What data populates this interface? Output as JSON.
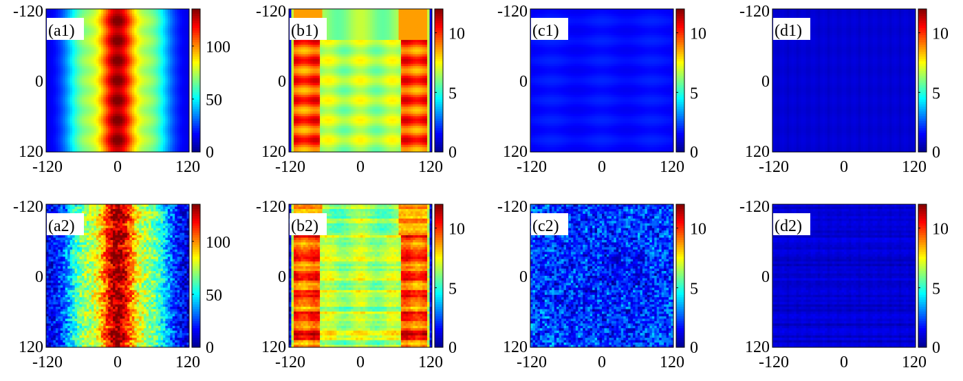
{
  "colormap": [
    "#00008f",
    "#0000ff",
    "#0080ff",
    "#00ffff",
    "#80ff80",
    "#ffff00",
    "#ff8000",
    "#ff0000",
    "#800000"
  ],
  "chart_data": [
    {
      "type": "heatmap",
      "panel_label": "(a1)",
      "pattern": "central_stripe_fringes",
      "noise": "none",
      "x_ticks": [
        "-120",
        "0",
        "120"
      ],
      "y_ticks": [
        "-120",
        "0",
        "120"
      ],
      "xlim": [
        -120,
        120
      ],
      "ylim": [
        -120,
        120
      ],
      "clim": [
        0,
        135
      ],
      "colorbar_ticks": [
        {
          "value": 0,
          "label": "0"
        },
        {
          "value": 50,
          "label": "50"
        },
        {
          "value": 100,
          "label": "100"
        }
      ]
    },
    {
      "type": "heatmap",
      "panel_label": "(b1)",
      "pattern": "edge_bands_fringes",
      "noise": "none",
      "x_ticks": [
        "-120",
        "0",
        "120"
      ],
      "y_ticks": [
        "-120",
        "0",
        "120"
      ],
      "xlim": [
        -120,
        120
      ],
      "ylim": [
        -120,
        120
      ],
      "clim": [
        0,
        12
      ],
      "colorbar_ticks": [
        {
          "value": 0,
          "label": "0"
        },
        {
          "value": 5,
          "label": "5"
        },
        {
          "value": 10,
          "label": "10"
        }
      ]
    },
    {
      "type": "heatmap",
      "panel_label": "(c1)",
      "pattern": "low_uniform_rows",
      "noise": "none",
      "x_ticks": [
        "-120",
        "0",
        "120"
      ],
      "y_ticks": [
        "-120",
        "0",
        "120"
      ],
      "xlim": [
        -120,
        120
      ],
      "ylim": [
        -120,
        120
      ],
      "clim": [
        0,
        12
      ],
      "colorbar_ticks": [
        {
          "value": 0,
          "label": "0"
        },
        {
          "value": 5,
          "label": "5"
        },
        {
          "value": 10,
          "label": "10"
        }
      ]
    },
    {
      "type": "heatmap",
      "panel_label": "(d1)",
      "pattern": "very_low_columns",
      "noise": "none",
      "x_ticks": [
        "-120",
        "0",
        "120"
      ],
      "y_ticks": [
        "-120",
        "0",
        "120"
      ],
      "xlim": [
        -120,
        120
      ],
      "ylim": [
        -120,
        120
      ],
      "clim": [
        0,
        12
      ],
      "colorbar_ticks": [
        {
          "value": 0,
          "label": "0"
        },
        {
          "value": 5,
          "label": "5"
        },
        {
          "value": 10,
          "label": "10"
        }
      ]
    },
    {
      "type": "heatmap",
      "panel_label": "(a2)",
      "pattern": "central_stripe_fringes",
      "noise": "speckle",
      "x_ticks": [
        "-120",
        "0",
        "120"
      ],
      "y_ticks": [
        "-120",
        "0",
        "120"
      ],
      "xlim": [
        -120,
        120
      ],
      "ylim": [
        -120,
        120
      ],
      "clim": [
        0,
        135
      ],
      "colorbar_ticks": [
        {
          "value": 0,
          "label": "0"
        },
        {
          "value": 50,
          "label": "50"
        },
        {
          "value": 100,
          "label": "100"
        }
      ]
    },
    {
      "type": "heatmap",
      "panel_label": "(b2)",
      "pattern": "edge_bands_fringes",
      "noise": "streaks",
      "x_ticks": [
        "-120",
        "0",
        "120"
      ],
      "y_ticks": [
        "-120",
        "0",
        "120"
      ],
      "xlim": [
        -120,
        120
      ],
      "ylim": [
        -120,
        120
      ],
      "clim": [
        0,
        12
      ],
      "colorbar_ticks": [
        {
          "value": 0,
          "label": "0"
        },
        {
          "value": 5,
          "label": "5"
        },
        {
          "value": 10,
          "label": "10"
        }
      ]
    },
    {
      "type": "heatmap",
      "panel_label": "(c2)",
      "pattern": "low_speckle",
      "noise": "blobs",
      "x_ticks": [
        "-120",
        "0",
        "120"
      ],
      "y_ticks": [
        "-120",
        "0",
        "120"
      ],
      "xlim": [
        -120,
        120
      ],
      "ylim": [
        -120,
        120
      ],
      "clim": [
        0,
        12
      ],
      "colorbar_ticks": [
        {
          "value": 0,
          "label": "0"
        },
        {
          "value": 5,
          "label": "5"
        },
        {
          "value": 10,
          "label": "10"
        }
      ]
    },
    {
      "type": "heatmap",
      "panel_label": "(d2)",
      "pattern": "very_low_columns",
      "noise": "horizontal_streaks",
      "x_ticks": [
        "-120",
        "0",
        "120"
      ],
      "y_ticks": [
        "-120",
        "0",
        "120"
      ],
      "xlim": [
        -120,
        120
      ],
      "ylim": [
        -120,
        120
      ],
      "clim": [
        0,
        12
      ],
      "colorbar_ticks": [
        {
          "value": 0,
          "label": "0"
        },
        {
          "value": 5,
          "label": "5"
        },
        {
          "value": 10,
          "label": "10"
        }
      ]
    }
  ]
}
